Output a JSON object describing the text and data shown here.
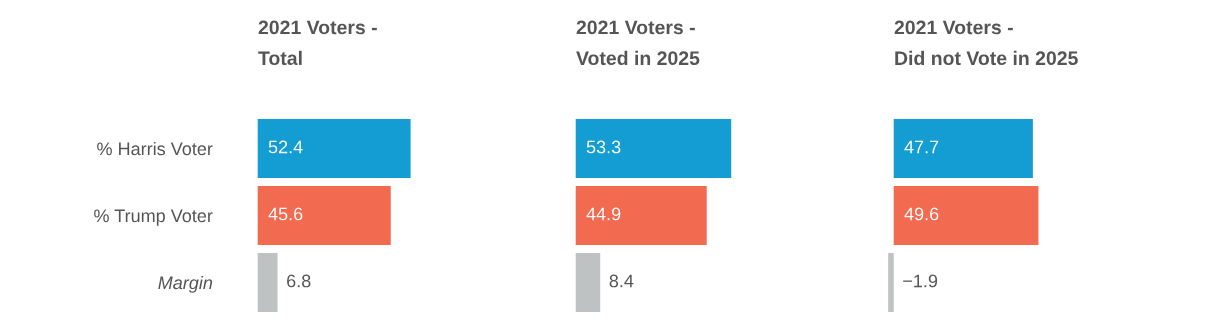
{
  "chart_data": [
    {
      "type": "bar",
      "orientation": "horizontal",
      "title": "2021 Voters -\nTotal",
      "categories": [
        "% Harris Voter",
        "% Trump Voter",
        "Margin"
      ],
      "values": [
        52.4,
        45.6,
        6.8
      ],
      "colors": [
        "#139dd3",
        "#f26b50",
        "#bfc2c2"
      ],
      "value_labels": [
        "52.4",
        "45.6",
        "6.8"
      ],
      "tick_labels": "y",
      "grid": false,
      "legend": false
    },
    {
      "type": "bar",
      "orientation": "horizontal",
      "title": "2021 Voters -\nVoted in 2025",
      "categories": [
        null,
        null,
        null
      ],
      "values": [
        53.3,
        44.9,
        8.4
      ],
      "colors": [
        "#139dd3",
        "#f26b50",
        "#bfc2c2"
      ],
      "value_labels": [
        "53.3",
        "44.9",
        "8.4"
      ],
      "tick_labels": false,
      "grid": false,
      "legend": false
    },
    {
      "type": "bar",
      "orientation": "horizontal",
      "title": "2021 Voters -\nDid not Vote in 2025",
      "categories": [
        null,
        null,
        null
      ],
      "values": [
        47.7,
        49.6,
        -1.9
      ],
      "colors": [
        "#139dd3",
        "#f26b50",
        "#bfc2c2"
      ],
      "value_labels": [
        "47.7",
        "49.6",
        "−1.9"
      ],
      "tick_labels": false,
      "grid": false,
      "legend": false
    }
  ]
}
